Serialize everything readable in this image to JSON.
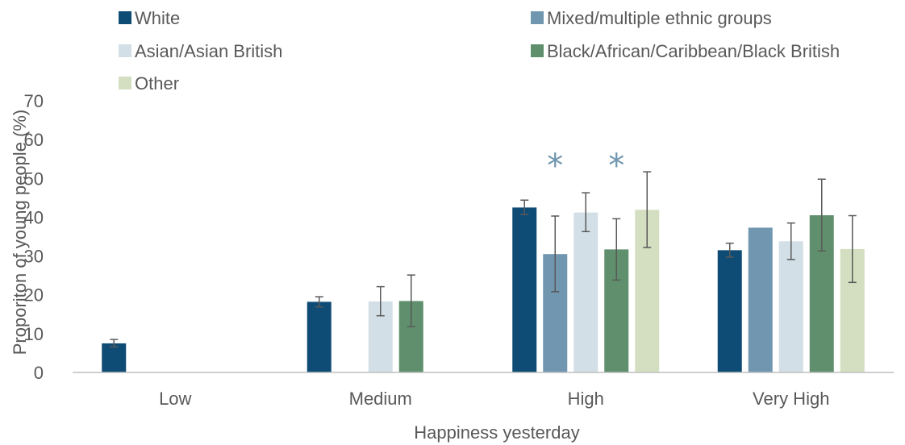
{
  "chart_data": {
    "type": "bar",
    "title": "",
    "xlabel": "Happiness yesterday",
    "ylabel": "Proporiton of young people (%)",
    "ylim": [
      0,
      70
    ],
    "yticks": [
      0,
      10,
      20,
      30,
      40,
      50,
      60,
      70
    ],
    "grid": false,
    "legend_position": "top",
    "categories": [
      "Low",
      "Medium",
      "High",
      "Very High"
    ],
    "series": [
      {
        "name": "White",
        "color": "#0f4c75",
        "values": [
          7.5,
          18.2,
          42.5,
          31.5
        ],
        "err_low": [
          6.6,
          16.9,
          40.7,
          29.7
        ],
        "err_high": [
          8.5,
          19.5,
          44.4,
          33.3
        ]
      },
      {
        "name": "Mixed/multiple ethnic groups",
        "color": "#7096b0",
        "values": [
          null,
          null,
          30.5,
          37.3
        ],
        "err_low": [
          null,
          null,
          20.8,
          null
        ],
        "err_high": [
          null,
          null,
          40.3,
          null
        ]
      },
      {
        "name": "Asian/Asian British",
        "color": "#d2dfe6",
        "values": [
          null,
          18.3,
          41.2,
          33.8
        ],
        "err_low": [
          null,
          14.6,
          36.3,
          29.1
        ],
        "err_high": [
          null,
          22.1,
          46.3,
          38.5
        ]
      },
      {
        "name": "Black/African/Caribbean/Black British",
        "color": "#5f8f6c",
        "values": [
          null,
          18.4,
          31.7,
          40.5
        ],
        "err_low": [
          null,
          11.8,
          23.8,
          31.3
        ],
        "err_high": [
          null,
          25.1,
          39.6,
          49.8
        ]
      },
      {
        "name": "Other",
        "color": "#d3dfc0",
        "values": [
          null,
          null,
          41.9,
          31.8
        ],
        "err_low": [
          null,
          null,
          32.2,
          23.2
        ],
        "err_high": [
          null,
          null,
          51.7,
          40.4
        ]
      }
    ],
    "annotations": [
      {
        "text": "*",
        "category": "High",
        "series": "Mixed/multiple ethnic groups",
        "y": 55,
        "color": "#7096b0"
      },
      {
        "text": "*",
        "category": "High",
        "series": "Black/African/Caribbean/Black British",
        "y": 55,
        "color": "#7096b0"
      }
    ]
  }
}
